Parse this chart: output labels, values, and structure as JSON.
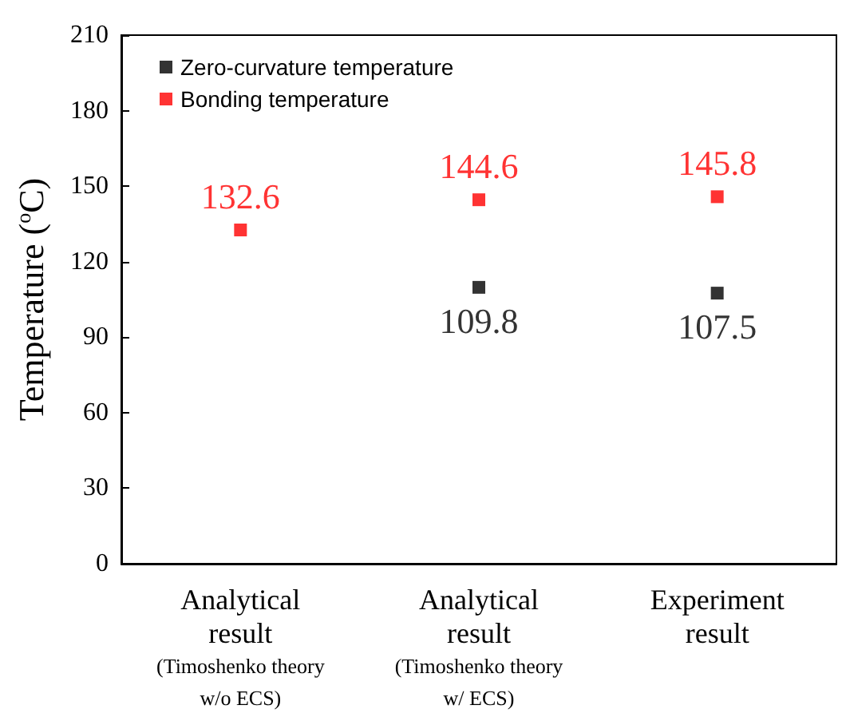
{
  "chart_data": {
    "type": "scatter",
    "ylabel": "Temperature ($^{o}$C)",
    "categories": [
      "Analytical\nresult\n(Timoshenko theory\nw/o ECS)",
      "Analytical\nresult\n(Timoshenko theory\nw/ ECS)",
      "Experiment\nresult"
    ],
    "series": [
      {
        "name": "Zero-curvature temperature",
        "color": "#000000",
        "values": [
          null,
          109.8,
          107.5
        ]
      },
      {
        "name": "Bonding temperature",
        "color": "#ff0000",
        "values": [
          132.6,
          144.6,
          145.8
        ]
      }
    ],
    "ylim": [
      0,
      210
    ],
    "yticks": [
      0,
      30,
      60,
      90,
      120,
      150,
      180,
      210
    ],
    "data_labels": true,
    "marker": "square",
    "legend": "top left",
    "grid": false
  }
}
